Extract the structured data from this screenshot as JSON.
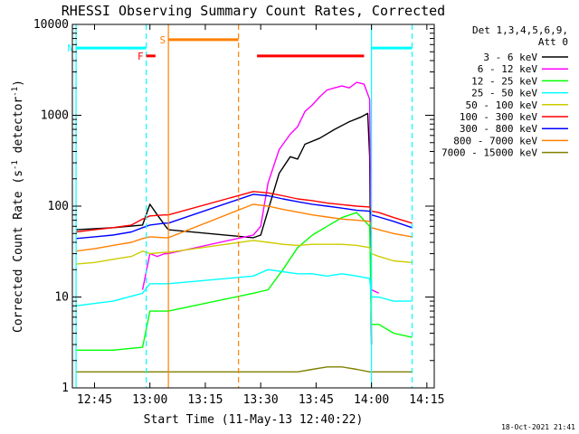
{
  "chart_data": {
    "type": "line",
    "title": "RHESSI Observing Summary Count Rates, Corrected",
    "xlabel": "Start Time (11-May-13 12:40:22)",
    "ylabel": "Corrected Count Rate (s⁻¹ detector⁻¹)",
    "ylabel_parts": {
      "main": "Corrected Count Rate (s",
      "sup1": "-1",
      "mid": " detector",
      "sup2": "-1",
      "end": ")"
    },
    "y_scale": "log",
    "ylim": [
      1,
      10000
    ],
    "xlim_minutes": [
      -1,
      97
    ],
    "x_ticks": [
      {
        "label": "12:45",
        "t": 5
      },
      {
        "label": "13:00",
        "t": 20
      },
      {
        "label": "13:15",
        "t": 35
      },
      {
        "label": "13:30",
        "t": 50
      },
      {
        "label": "13:45",
        "t": 65
      },
      {
        "label": "14:00",
        "t": 80
      },
      {
        "label": "14:15",
        "t": 95
      }
    ],
    "y_ticks": [
      {
        "label": "1",
        "v": 1
      },
      {
        "label": "10",
        "v": 10
      },
      {
        "label": "100",
        "v": 100
      },
      {
        "label": "1000",
        "v": 1000
      },
      {
        "label": "10000",
        "v": 10000
      }
    ],
    "grid": false,
    "legend_position": "right",
    "legend_header": [
      "Det 1,3,4,5,6,9,",
      "Att 0"
    ],
    "series": [
      {
        "name": "3 - 6 keV",
        "color": "#000000",
        "points": [
          [
            0,
            55
          ],
          [
            10,
            58
          ],
          [
            18,
            62
          ],
          [
            20,
            105
          ],
          [
            22,
            80
          ],
          [
            24,
            62
          ],
          [
            25,
            55
          ],
          [
            48,
            45
          ],
          [
            50,
            48
          ],
          [
            52,
            90
          ],
          [
            55,
            230
          ],
          [
            58,
            350
          ],
          [
            60,
            330
          ],
          [
            62,
            480
          ],
          [
            66,
            560
          ],
          [
            70,
            700
          ],
          [
            74,
            850
          ],
          [
            77,
            950
          ],
          [
            79,
            1050
          ],
          [
            79.5,
            350
          ],
          [
            80,
            3
          ]
        ]
      },
      {
        "name": "6 - 12 keV",
        "color": "#ff00ff",
        "points": [
          [
            18,
            12
          ],
          [
            20,
            30
          ],
          [
            22,
            28
          ],
          [
            24,
            30
          ],
          [
            25,
            30
          ],
          [
            48,
            48
          ],
          [
            50,
            60
          ],
          [
            52,
            180
          ],
          [
            55,
            420
          ],
          [
            58,
            620
          ],
          [
            60,
            750
          ],
          [
            62,
            1100
          ],
          [
            64,
            1300
          ],
          [
            66,
            1600
          ],
          [
            68,
            1900
          ],
          [
            70,
            2000
          ],
          [
            72,
            2100
          ],
          [
            74,
            2000
          ],
          [
            76,
            2300
          ],
          [
            78,
            2200
          ],
          [
            79.5,
            1500
          ],
          [
            80,
            12
          ],
          [
            82,
            11
          ]
        ]
      },
      {
        "name": "12 - 25 keV",
        "color": "#00ff00",
        "points": [
          [
            0,
            2.6
          ],
          [
            10,
            2.6
          ],
          [
            18,
            2.8
          ],
          [
            20,
            7
          ],
          [
            24,
            7
          ],
          [
            25,
            7
          ],
          [
            48,
            11
          ],
          [
            52,
            12
          ],
          [
            56,
            20
          ],
          [
            60,
            35
          ],
          [
            64,
            48
          ],
          [
            68,
            60
          ],
          [
            72,
            75
          ],
          [
            76,
            85
          ],
          [
            78,
            70
          ],
          [
            79.5,
            60
          ],
          [
            80,
            5
          ],
          [
            82,
            5
          ],
          [
            86,
            4
          ],
          [
            91,
            3.6
          ]
        ]
      },
      {
        "name": "25 - 50 keV",
        "color": "#00ffff",
        "points": [
          [
            0,
            8
          ],
          [
            10,
            9
          ],
          [
            18,
            11
          ],
          [
            20,
            14
          ],
          [
            22,
            14
          ],
          [
            24,
            14
          ],
          [
            25,
            14
          ],
          [
            48,
            17
          ],
          [
            52,
            20
          ],
          [
            56,
            19
          ],
          [
            60,
            18
          ],
          [
            64,
            18
          ],
          [
            68,
            17
          ],
          [
            72,
            18
          ],
          [
            76,
            17
          ],
          [
            79.5,
            16
          ],
          [
            80,
            10
          ],
          [
            82,
            10
          ],
          [
            86,
            9
          ],
          [
            91,
            9
          ]
        ]
      },
      {
        "name": "50 - 100 keV",
        "color": "#cccc00",
        "points": [
          [
            0,
            23
          ],
          [
            5,
            24
          ],
          [
            10,
            26
          ],
          [
            15,
            28
          ],
          [
            18,
            32
          ],
          [
            20,
            30
          ],
          [
            24,
            31
          ],
          [
            25,
            31
          ],
          [
            48,
            42
          ],
          [
            52,
            40
          ],
          [
            56,
            38
          ],
          [
            60,
            37
          ],
          [
            64,
            38
          ],
          [
            68,
            38
          ],
          [
            72,
            38
          ],
          [
            76,
            37
          ],
          [
            79.5,
            35
          ],
          [
            80,
            30
          ],
          [
            82,
            28
          ],
          [
            86,
            25
          ],
          [
            91,
            24
          ]
        ]
      },
      {
        "name": "100 - 300 keV",
        "color": "#ff0000",
        "points": [
          [
            0,
            52
          ],
          [
            5,
            55
          ],
          [
            10,
            58
          ],
          [
            15,
            62
          ],
          [
            18,
            72
          ],
          [
            20,
            78
          ],
          [
            24,
            80
          ],
          [
            25,
            80
          ],
          [
            48,
            145
          ],
          [
            52,
            140
          ],
          [
            56,
            130
          ],
          [
            60,
            120
          ],
          [
            64,
            115
          ],
          [
            68,
            108
          ],
          [
            72,
            104
          ],
          [
            76,
            100
          ],
          [
            79.5,
            98
          ],
          [
            80,
            88
          ],
          [
            82,
            85
          ],
          [
            86,
            75
          ],
          [
            91,
            65
          ]
        ]
      },
      {
        "name": "300 - 800 keV",
        "color": "#0000ff",
        "points": [
          [
            0,
            44
          ],
          [
            5,
            46
          ],
          [
            10,
            48
          ],
          [
            15,
            52
          ],
          [
            18,
            58
          ],
          [
            20,
            62
          ],
          [
            24,
            65
          ],
          [
            25,
            65
          ],
          [
            48,
            135
          ],
          [
            52,
            130
          ],
          [
            56,
            120
          ],
          [
            60,
            112
          ],
          [
            64,
            105
          ],
          [
            68,
            100
          ],
          [
            72,
            95
          ],
          [
            76,
            90
          ],
          [
            79.5,
            88
          ],
          [
            80,
            80
          ],
          [
            82,
            76
          ],
          [
            86,
            68
          ],
          [
            91,
            58
          ]
        ]
      },
      {
        "name": "800 - 7000 keV",
        "color": "#ff8000",
        "points": [
          [
            0,
            32
          ],
          [
            5,
            34
          ],
          [
            10,
            37
          ],
          [
            15,
            40
          ],
          [
            18,
            44
          ],
          [
            20,
            46
          ],
          [
            24,
            45
          ],
          [
            25,
            45
          ],
          [
            48,
            105
          ],
          [
            52,
            100
          ],
          [
            56,
            92
          ],
          [
            60,
            86
          ],
          [
            64,
            80
          ],
          [
            68,
            76
          ],
          [
            72,
            72
          ],
          [
            76,
            70
          ],
          [
            79.5,
            68
          ],
          [
            80,
            58
          ],
          [
            82,
            55
          ],
          [
            86,
            50
          ],
          [
            91,
            46
          ]
        ]
      },
      {
        "name": "7000 - 15000 keV",
        "color": "#808000",
        "points": [
          [
            0,
            1.5
          ],
          [
            5,
            1.5
          ],
          [
            10,
            1.5
          ],
          [
            15,
            1.5
          ],
          [
            20,
            1.5
          ],
          [
            25,
            1.5
          ],
          [
            48,
            1.5
          ],
          [
            52,
            1.5
          ],
          [
            56,
            1.5
          ],
          [
            60,
            1.5
          ],
          [
            64,
            1.6
          ],
          [
            68,
            1.7
          ],
          [
            72,
            1.7
          ],
          [
            76,
            1.6
          ],
          [
            79.5,
            1.5
          ],
          [
            80,
            1.5
          ],
          [
            86,
            1.5
          ],
          [
            91,
            1.5
          ]
        ]
      }
    ],
    "flag_bars": [
      {
        "label": "N",
        "color": "#00ffff",
        "segments": [
          [
            0,
            19
          ],
          [
            80,
            91
          ]
        ],
        "level": 5500
      },
      {
        "label": "F",
        "color": "#ff0000",
        "segments": [
          [
            19,
            21.5
          ],
          [
            49,
            78
          ]
        ],
        "level": 4500
      },
      {
        "label": "S",
        "color": "#ff8000",
        "segments": [
          [
            25,
            44
          ]
        ],
        "level": 6800
      }
    ],
    "intervals": [
      {
        "start": 0,
        "end": 19,
        "color": "#00ffff",
        "kind": "night"
      },
      {
        "start": 25,
        "end": 44,
        "color": "#ff8000",
        "kind": "saa"
      },
      {
        "start": 80,
        "end": 91,
        "color": "#00ffff",
        "kind": "night"
      }
    ],
    "stamp": "18-Oct-2021 21:41"
  }
}
